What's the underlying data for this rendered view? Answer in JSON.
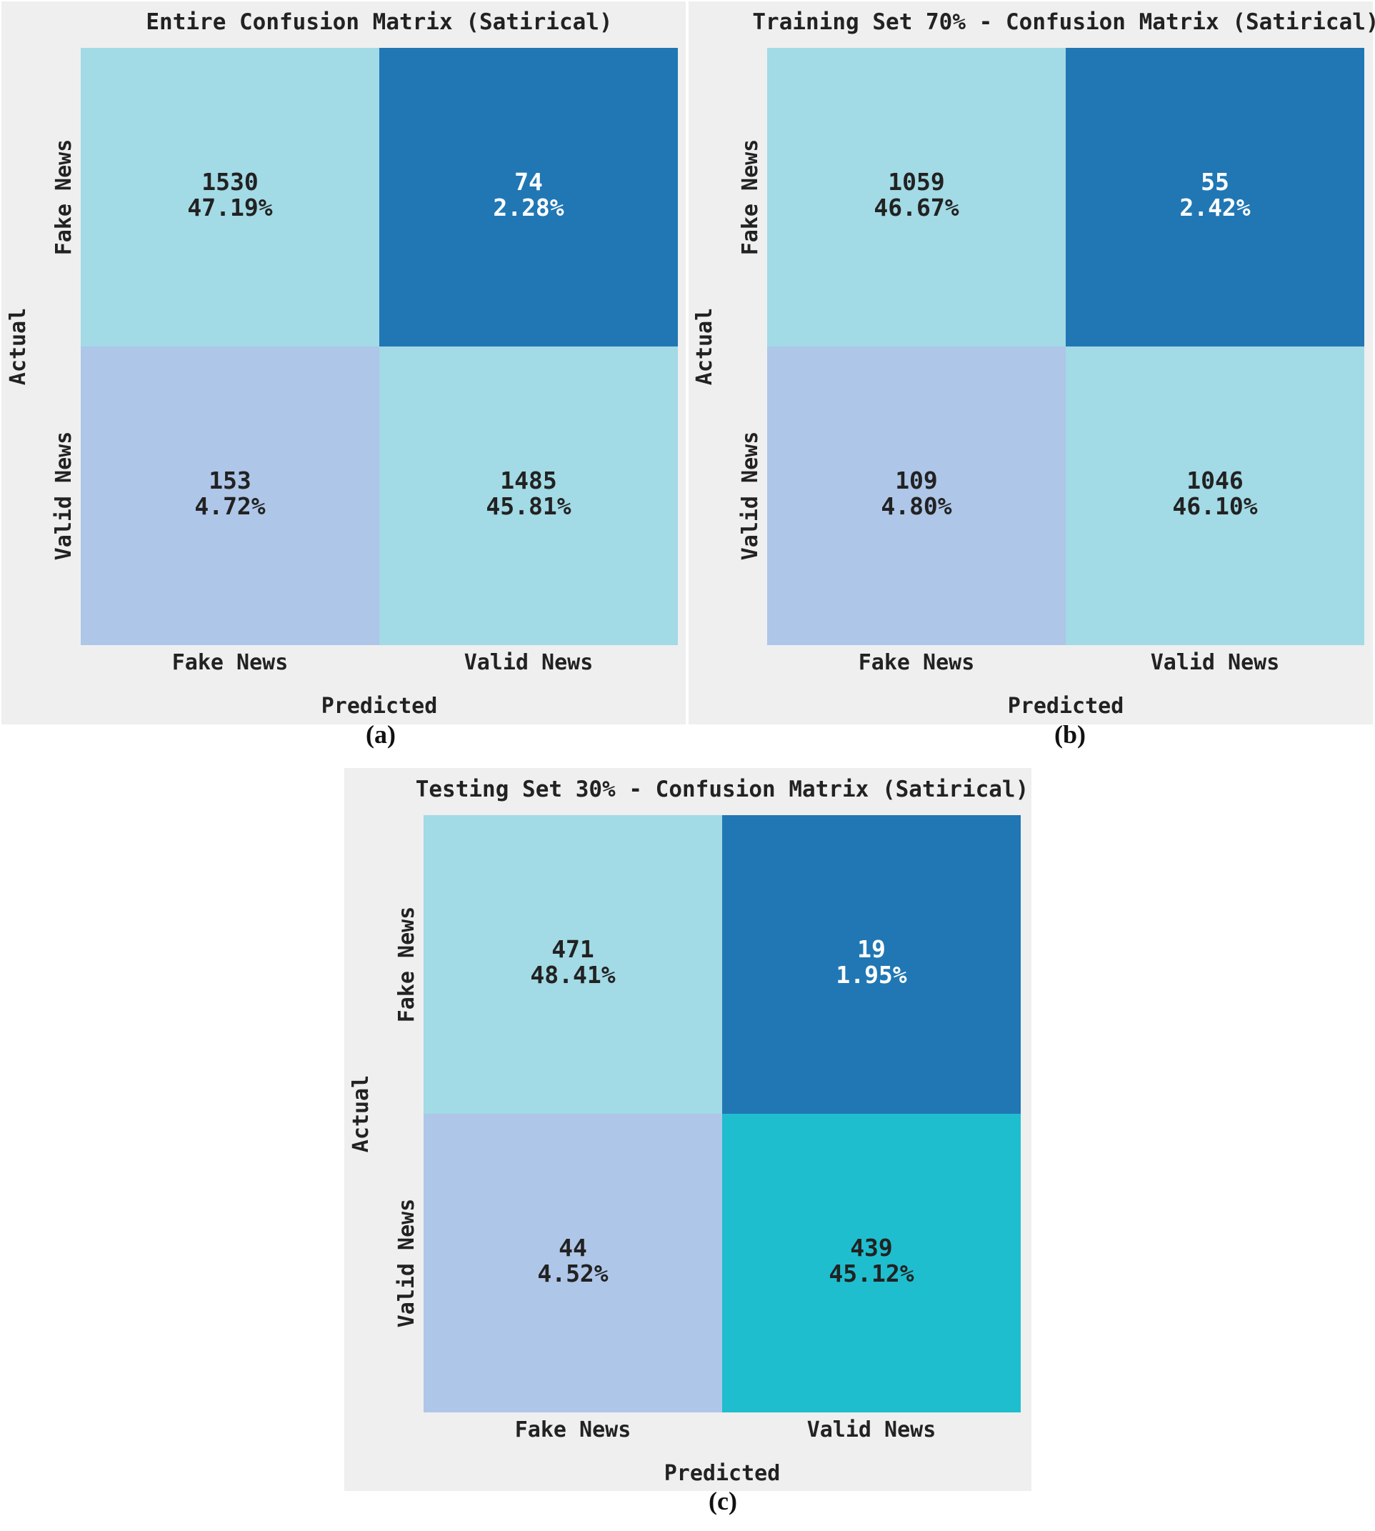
{
  "chart_data": [
    {
      "type": "heatmap",
      "panel_label": "(a)",
      "title": "Entire Confusion Matrix (Satirical)",
      "xlabel": "Predicted",
      "ylabel": "Actual",
      "x_categories": [
        "Fake News",
        "Valid News"
      ],
      "y_categories": [
        "Fake News",
        "Valid News"
      ],
      "counts": [
        [
          1530,
          74
        ],
        [
          153,
          1485
        ]
      ],
      "percents": [
        "47.19%",
        "2.28%",
        "4.72%",
        "45.81%"
      ],
      "cell_colors": [
        "#a2dae5",
        "#2077b4",
        "#aec6e8",
        "#a2dae5"
      ],
      "text_colors": [
        "#222222",
        "#ffffff",
        "#222222",
        "#222222"
      ]
    },
    {
      "type": "heatmap",
      "panel_label": "(b)",
      "title": "Training Set 70% - Confusion Matrix (Satirical)",
      "xlabel": "Predicted",
      "ylabel": "Actual",
      "x_categories": [
        "Fake News",
        "Valid News"
      ],
      "y_categories": [
        "Fake News",
        "Valid News"
      ],
      "counts": [
        [
          1059,
          55
        ],
        [
          109,
          1046
        ]
      ],
      "percents": [
        "46.67%",
        "2.42%",
        "4.80%",
        "46.10%"
      ],
      "cell_colors": [
        "#a2dae5",
        "#2077b4",
        "#aec6e8",
        "#a2dae5"
      ],
      "text_colors": [
        "#222222",
        "#ffffff",
        "#222222",
        "#222222"
      ]
    },
    {
      "type": "heatmap",
      "panel_label": "(c)",
      "title": "Testing Set 30% - Confusion Matrix (Satirical)",
      "xlabel": "Predicted",
      "ylabel": "Actual",
      "x_categories": [
        "Fake News",
        "Valid News"
      ],
      "y_categories": [
        "Fake News",
        "Valid News"
      ],
      "counts": [
        [
          471,
          19
        ],
        [
          44,
          439
        ]
      ],
      "percents": [
        "48.41%",
        "1.95%",
        "4.52%",
        "45.12%"
      ],
      "cell_colors": [
        "#a2dae5",
        "#2077b4",
        "#aec6e8",
        "#1ebecf"
      ],
      "text_colors": [
        "#222222",
        "#ffffff",
        "#222222",
        "#222222"
      ]
    }
  ]
}
